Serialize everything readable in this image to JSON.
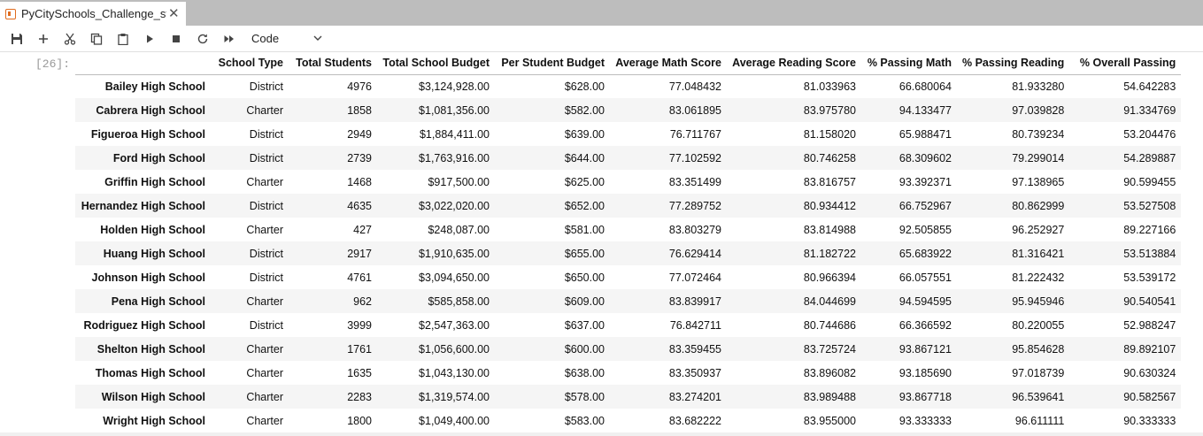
{
  "tab": {
    "title": "PyCitySchools_Challenge_starter",
    "close": "✕"
  },
  "toolbar": {
    "cell_type": "Code"
  },
  "cell": {
    "prompt": "[26]:"
  },
  "table": {
    "columns": [
      "",
      "School Type",
      "Total Students",
      "Total School Budget",
      "Per Student Budget",
      "Average Math Score",
      "Average Reading Score",
      "% Passing Math",
      "% Passing Reading",
      "% Overall Passing"
    ],
    "rows": [
      [
        "Bailey High School",
        "District",
        "4976",
        "$3,124,928.00",
        "$628.00",
        "77.048432",
        "81.033963",
        "66.680064",
        "81.933280",
        "54.642283"
      ],
      [
        "Cabrera High School",
        "Charter",
        "1858",
        "$1,081,356.00",
        "$582.00",
        "83.061895",
        "83.975780",
        "94.133477",
        "97.039828",
        "91.334769"
      ],
      [
        "Figueroa High School",
        "District",
        "2949",
        "$1,884,411.00",
        "$639.00",
        "76.711767",
        "81.158020",
        "65.988471",
        "80.739234",
        "53.204476"
      ],
      [
        "Ford High School",
        "District",
        "2739",
        "$1,763,916.00",
        "$644.00",
        "77.102592",
        "80.746258",
        "68.309602",
        "79.299014",
        "54.289887"
      ],
      [
        "Griffin High School",
        "Charter",
        "1468",
        "$917,500.00",
        "$625.00",
        "83.351499",
        "83.816757",
        "93.392371",
        "97.138965",
        "90.599455"
      ],
      [
        "Hernandez High School",
        "District",
        "4635",
        "$3,022,020.00",
        "$652.00",
        "77.289752",
        "80.934412",
        "66.752967",
        "80.862999",
        "53.527508"
      ],
      [
        "Holden High School",
        "Charter",
        "427",
        "$248,087.00",
        "$581.00",
        "83.803279",
        "83.814988",
        "92.505855",
        "96.252927",
        "89.227166"
      ],
      [
        "Huang High School",
        "District",
        "2917",
        "$1,910,635.00",
        "$655.00",
        "76.629414",
        "81.182722",
        "65.683922",
        "81.316421",
        "53.513884"
      ],
      [
        "Johnson High School",
        "District",
        "4761",
        "$3,094,650.00",
        "$650.00",
        "77.072464",
        "80.966394",
        "66.057551",
        "81.222432",
        "53.539172"
      ],
      [
        "Pena High School",
        "Charter",
        "962",
        "$585,858.00",
        "$609.00",
        "83.839917",
        "84.044699",
        "94.594595",
        "95.945946",
        "90.540541"
      ],
      [
        "Rodriguez High School",
        "District",
        "3999",
        "$2,547,363.00",
        "$637.00",
        "76.842711",
        "80.744686",
        "66.366592",
        "80.220055",
        "52.988247"
      ],
      [
        "Shelton High School",
        "Charter",
        "1761",
        "$1,056,600.00",
        "$600.00",
        "83.359455",
        "83.725724",
        "93.867121",
        "95.854628",
        "89.892107"
      ],
      [
        "Thomas High School",
        "Charter",
        "1635",
        "$1,043,130.00",
        "$638.00",
        "83.350937",
        "83.896082",
        "93.185690",
        "97.018739",
        "90.630324"
      ],
      [
        "Wilson High School",
        "Charter",
        "2283",
        "$1,319,574.00",
        "$578.00",
        "83.274201",
        "83.989488",
        "93.867718",
        "96.539641",
        "90.582567"
      ],
      [
        "Wright High School",
        "Charter",
        "1800",
        "$1,049,400.00",
        "$583.00",
        "83.682222",
        "83.955000",
        "93.333333",
        "96.611111",
        "90.333333"
      ]
    ]
  }
}
